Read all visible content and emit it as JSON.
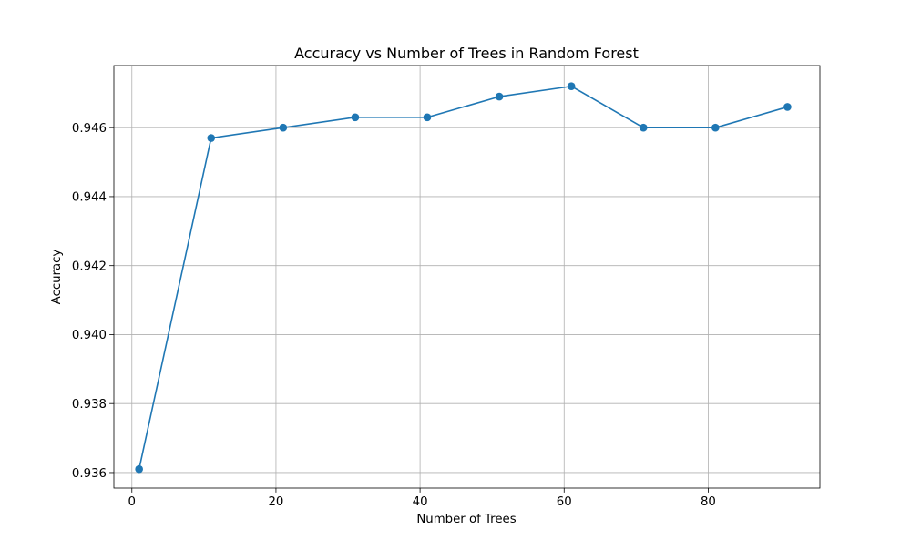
{
  "chart_data": {
    "type": "line",
    "title": "Accuracy vs Number of Trees in Random Forest",
    "xlabel": "Number of Trees",
    "ylabel": "Accuracy",
    "xlim": [
      -2.5,
      95.5
    ],
    "ylim": [
      0.93555,
      0.9478
    ],
    "xticks": [
      0,
      20,
      40,
      60,
      80
    ],
    "xtick_labels": [
      "0",
      "20",
      "40",
      "60",
      "80"
    ],
    "yticks": [
      0.936,
      0.938,
      0.94,
      0.942,
      0.944,
      0.946
    ],
    "ytick_labels": [
      "0.936",
      "0.938",
      "0.940",
      "0.942",
      "0.944",
      "0.946"
    ],
    "grid": true,
    "marker": "circle",
    "line_color": "#1f77b4",
    "x": [
      1,
      11,
      21,
      31,
      41,
      51,
      61,
      71,
      81,
      91
    ],
    "series": [
      {
        "values": [
          0.9361,
          0.9457,
          0.946,
          0.9463,
          0.9463,
          0.9469,
          0.9472,
          0.946,
          0.946,
          0.9466
        ]
      }
    ]
  }
}
